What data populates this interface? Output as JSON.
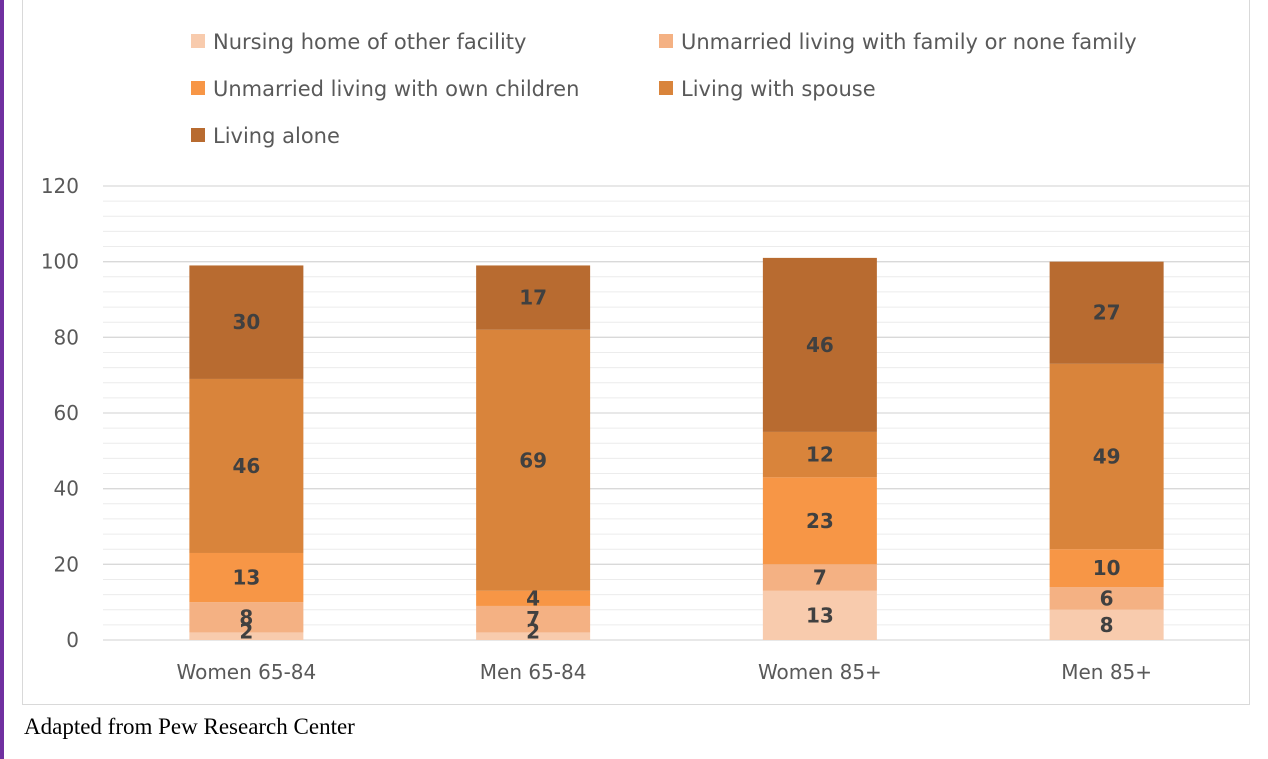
{
  "caption": "Adapted from Pew Research Center",
  "chart_data": {
    "type": "bar",
    "stacked": true,
    "categories": [
      "Women 65-84",
      "Men 65-84",
      "Women 85+",
      "Men 85+"
    ],
    "series": [
      {
        "name": "Nursing home of other facility",
        "color": "#f8cbad",
        "values": [
          2,
          2,
          13,
          8
        ]
      },
      {
        "name": "Unmarried living with family or none family",
        "color": "#f4b183",
        "values": [
          8,
          7,
          7,
          6
        ]
      },
      {
        "name": "Unmarried living with own children",
        "color": "#f79646",
        "values": [
          13,
          4,
          23,
          10
        ]
      },
      {
        "name": "Living with spouse",
        "color": "#d9843b",
        "values": [
          46,
          69,
          12,
          49
        ]
      },
      {
        "name": "Living alone",
        "color": "#b86b30",
        "values": [
          30,
          17,
          46,
          27
        ]
      }
    ],
    "ylim": [
      0,
      120
    ],
    "yticks": [
      0,
      20,
      40,
      60,
      80,
      100,
      120
    ],
    "grid": true,
    "legend_position": "top",
    "data_labels": true
  }
}
